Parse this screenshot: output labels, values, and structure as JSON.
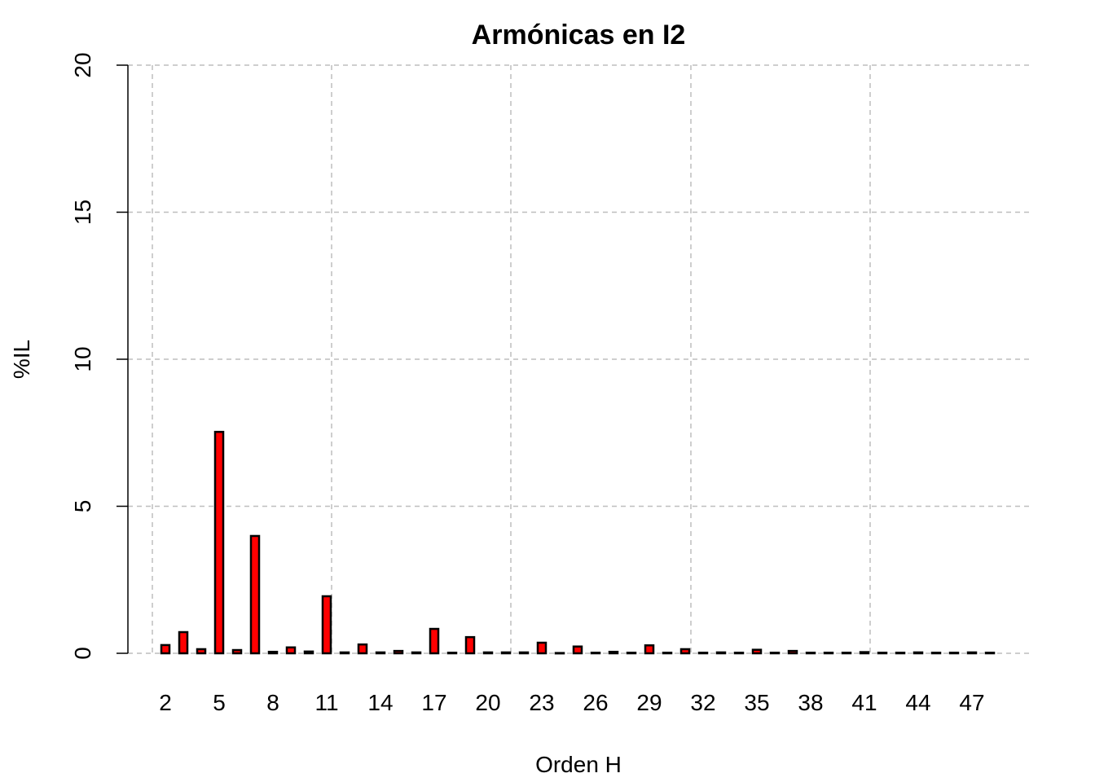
{
  "chart_data": {
    "type": "bar",
    "title": "Armónicas en I2",
    "xlabel": "Orden H",
    "ylabel": "%IL",
    "ylim": [
      0,
      20
    ],
    "yticks": [
      0,
      5,
      10,
      15,
      20
    ],
    "xtick_labels": [
      "2",
      "5",
      "8",
      "11",
      "14",
      "17",
      "20",
      "23",
      "26",
      "29",
      "32",
      "35",
      "38",
      "41",
      "44",
      "47"
    ],
    "grid": true,
    "bar_color": "#ff0000",
    "grid_color": "#bebebe",
    "categories": [
      2,
      3,
      4,
      5,
      6,
      7,
      8,
      9,
      10,
      11,
      12,
      13,
      14,
      15,
      16,
      17,
      18,
      19,
      20,
      21,
      22,
      23,
      24,
      25,
      26,
      27,
      28,
      29,
      30,
      31,
      32,
      33,
      34,
      35,
      36,
      37,
      38,
      39,
      40,
      41,
      42,
      43,
      44,
      45,
      46,
      47,
      48
    ],
    "values": [
      0.28,
      0.72,
      0.14,
      7.53,
      0.11,
      3.99,
      0.05,
      0.2,
      0.06,
      1.94,
      0.03,
      0.3,
      0.03,
      0.08,
      0.03,
      0.83,
      0.02,
      0.55,
      0.03,
      0.03,
      0.03,
      0.36,
      0.01,
      0.23,
      0.02,
      0.05,
      0.02,
      0.27,
      0.02,
      0.14,
      0.02,
      0.03,
      0.02,
      0.12,
      0.02,
      0.08,
      0.02,
      0.02,
      0.02,
      0.04,
      0.02,
      0.02,
      0.03,
      0.02,
      0.02,
      0.03,
      0.02
    ]
  }
}
